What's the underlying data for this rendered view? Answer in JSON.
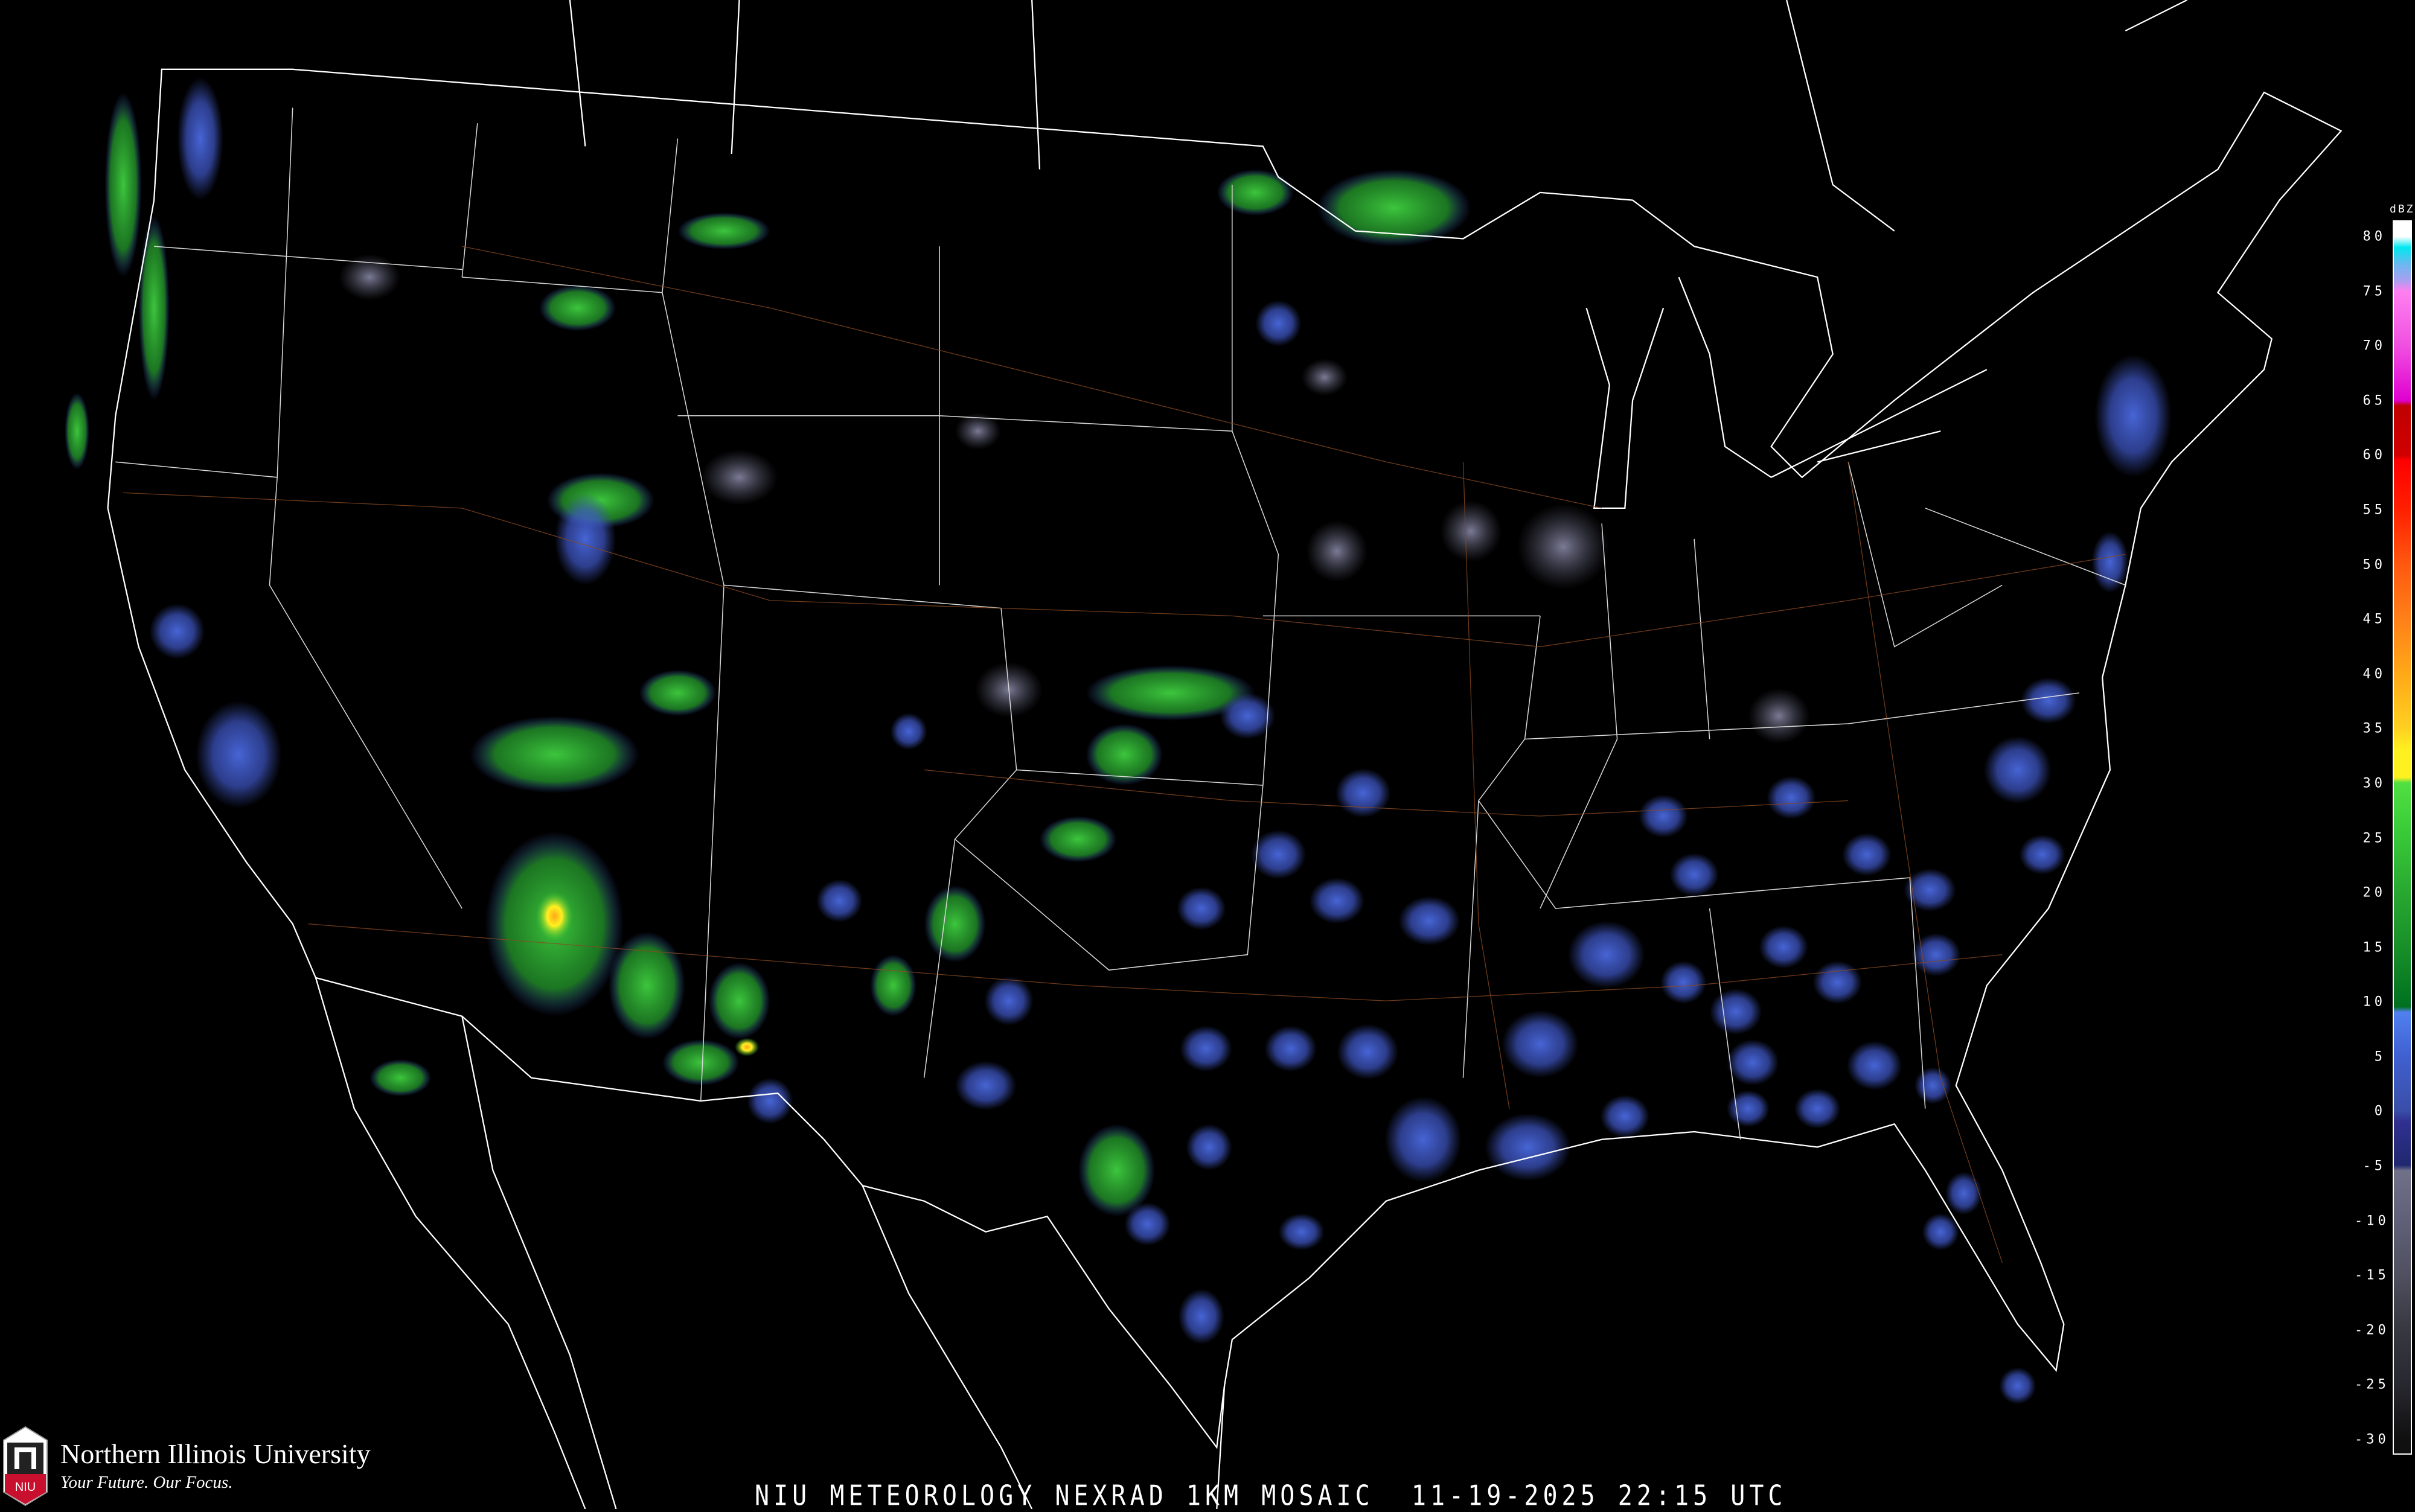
{
  "title": "NIU METEOROLOGY NEXRAD 1KM MOSAIC  11-19-2025 22:15 UTC",
  "branding": {
    "name": "Northern Illinois University",
    "tagline": "Your Future. Our Focus.",
    "shield_text": "NIU",
    "shield_color": "#c8102e"
  },
  "legend": {
    "unit": "dBZ",
    "range": [
      -30,
      80
    ],
    "labels": [
      "80",
      "75",
      "70",
      "65",
      "60",
      "55",
      "50",
      "45",
      "40",
      "35",
      "30",
      "25",
      "20",
      "15",
      "10",
      "5",
      "0",
      "-5",
      "-10",
      "-15",
      "-20",
      "-25",
      "-30"
    ],
    "color_stops": [
      {
        "dbz": 80,
        "color": "#ffffff"
      },
      {
        "dbz": 79,
        "color": "#00e8f0"
      },
      {
        "dbz": 77.5,
        "color": "#6ab8f0"
      },
      {
        "dbz": 76,
        "color": "#a8a0f0"
      },
      {
        "dbz": 75,
        "color": "#ff80f0"
      },
      {
        "dbz": 70,
        "color": "#f050e0"
      },
      {
        "dbz": 65,
        "color": "#e000d0"
      },
      {
        "dbz": 64.5,
        "color": "#c00000"
      },
      {
        "dbz": 60,
        "color": "#d00000"
      },
      {
        "dbz": 59.5,
        "color": "#ff0000"
      },
      {
        "dbz": 55,
        "color": "#ff2000"
      },
      {
        "dbz": 50,
        "color": "#ff5810"
      },
      {
        "dbz": 45,
        "color": "#ff8018"
      },
      {
        "dbz": 40,
        "color": "#ffa818"
      },
      {
        "dbz": 35,
        "color": "#ffd020"
      },
      {
        "dbz": 33,
        "color": "#fff020"
      },
      {
        "dbz": 30.5,
        "color": "#fff020"
      },
      {
        "dbz": 30,
        "color": "#50e040"
      },
      {
        "dbz": 25,
        "color": "#38c838"
      },
      {
        "dbz": 20,
        "color": "#28a830"
      },
      {
        "dbz": 15,
        "color": "#189028"
      },
      {
        "dbz": 9.5,
        "color": "#007020"
      },
      {
        "dbz": 9,
        "color": "#5080f0"
      },
      {
        "dbz": 5,
        "color": "#4060d0"
      },
      {
        "dbz": 0,
        "color": "#3a4ea8"
      },
      {
        "dbz": -1,
        "color": "#303090"
      },
      {
        "dbz": -5,
        "color": "#202870"
      },
      {
        "dbz": -5.5,
        "color": "#707088"
      },
      {
        "dbz": -10,
        "color": "#606078"
      },
      {
        "dbz": -15,
        "color": "#505060"
      },
      {
        "dbz": -20,
        "color": "#383840"
      },
      {
        "dbz": -25,
        "color": "#282830"
      },
      {
        "dbz": -30,
        "color": "#101010"
      }
    ]
  }
}
